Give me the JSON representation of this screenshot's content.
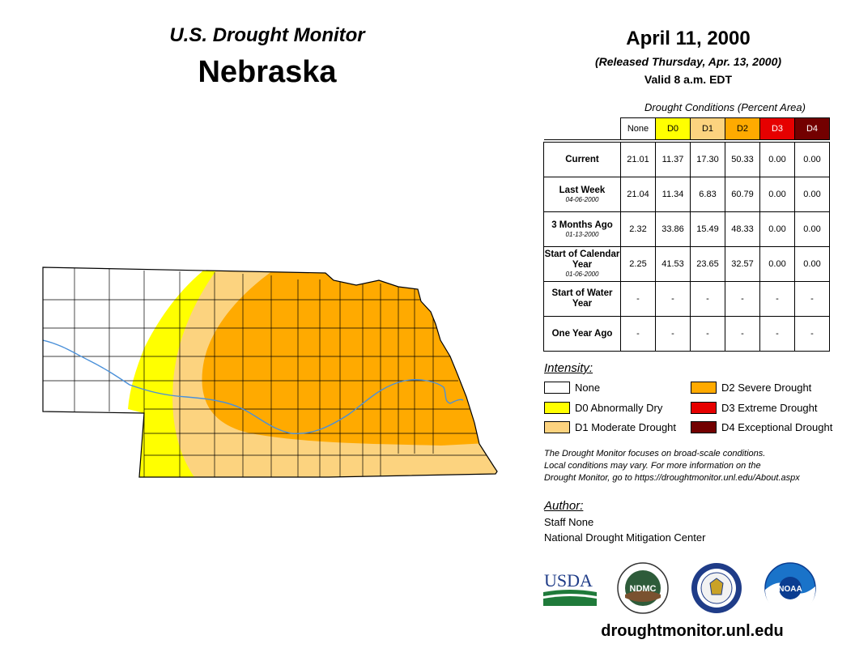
{
  "header": {
    "monitor_title": "U.S. Drought Monitor",
    "state": "Nebraska",
    "date": "April 11, 2000",
    "released": "(Released Thursday, Apr. 13, 2000)",
    "valid": "Valid 8 a.m. EDT"
  },
  "table": {
    "caption": "Drought Conditions (Percent Area)",
    "columns": [
      "None",
      "D0",
      "D1",
      "D2",
      "D3",
      "D4"
    ],
    "column_colors": [
      "#ffffff",
      "#ffff00",
      "#fcd37f",
      "#ffaa00",
      "#e60000",
      "#730000"
    ],
    "rows": [
      {
        "label": "Current",
        "sub": "",
        "values": [
          "21.01",
          "11.37",
          "17.30",
          "50.33",
          "0.00",
          "0.00"
        ]
      },
      {
        "label": "Last Week",
        "sub": "04-06-2000",
        "values": [
          "21.04",
          "11.34",
          "6.83",
          "60.79",
          "0.00",
          "0.00"
        ]
      },
      {
        "label": "3 Months Ago",
        "sub": "01-13-2000",
        "values": [
          "2.32",
          "33.86",
          "15.49",
          "48.33",
          "0.00",
          "0.00"
        ]
      },
      {
        "label": "Start of Calendar Year",
        "sub": "01-06-2000",
        "values": [
          "2.25",
          "41.53",
          "23.65",
          "32.57",
          "0.00",
          "0.00"
        ]
      },
      {
        "label": "Start of Water Year",
        "sub": "",
        "values": [
          "-",
          "-",
          "-",
          "-",
          "-",
          "-"
        ]
      },
      {
        "label": "One Year Ago",
        "sub": "",
        "values": [
          "-",
          "-",
          "-",
          "-",
          "-",
          "-"
        ]
      }
    ]
  },
  "legend": {
    "title": "Intensity:",
    "items": [
      {
        "label": "None",
        "color": "#ffffff"
      },
      {
        "label": "D0 Abnormally Dry",
        "color": "#ffff00"
      },
      {
        "label": "D1 Moderate Drought",
        "color": "#fcd37f"
      },
      {
        "label": "D2 Severe Drought",
        "color": "#ffaa00"
      },
      {
        "label": "D3 Extreme Drought",
        "color": "#e60000"
      },
      {
        "label": "D4 Exceptional Drought",
        "color": "#730000"
      }
    ]
  },
  "note": {
    "line1": "The Drought Monitor focuses on broad-scale conditions.",
    "line2": "Local conditions may vary. For more information on the",
    "line3": "Drought Monitor, go to https://droughtmonitor.unl.edu/About.aspx"
  },
  "author": {
    "title": "Author:",
    "name": "Staff None",
    "org": "National Drought Mitigation Center"
  },
  "logos": {
    "usda": "USDA",
    "ndmc": "NDMC",
    "noaa": "NOAA"
  },
  "footer": {
    "url": "droughtmonitor.unl.edu"
  },
  "map": {
    "river_color": "#4a90d9",
    "county_line_color": "#000000"
  }
}
